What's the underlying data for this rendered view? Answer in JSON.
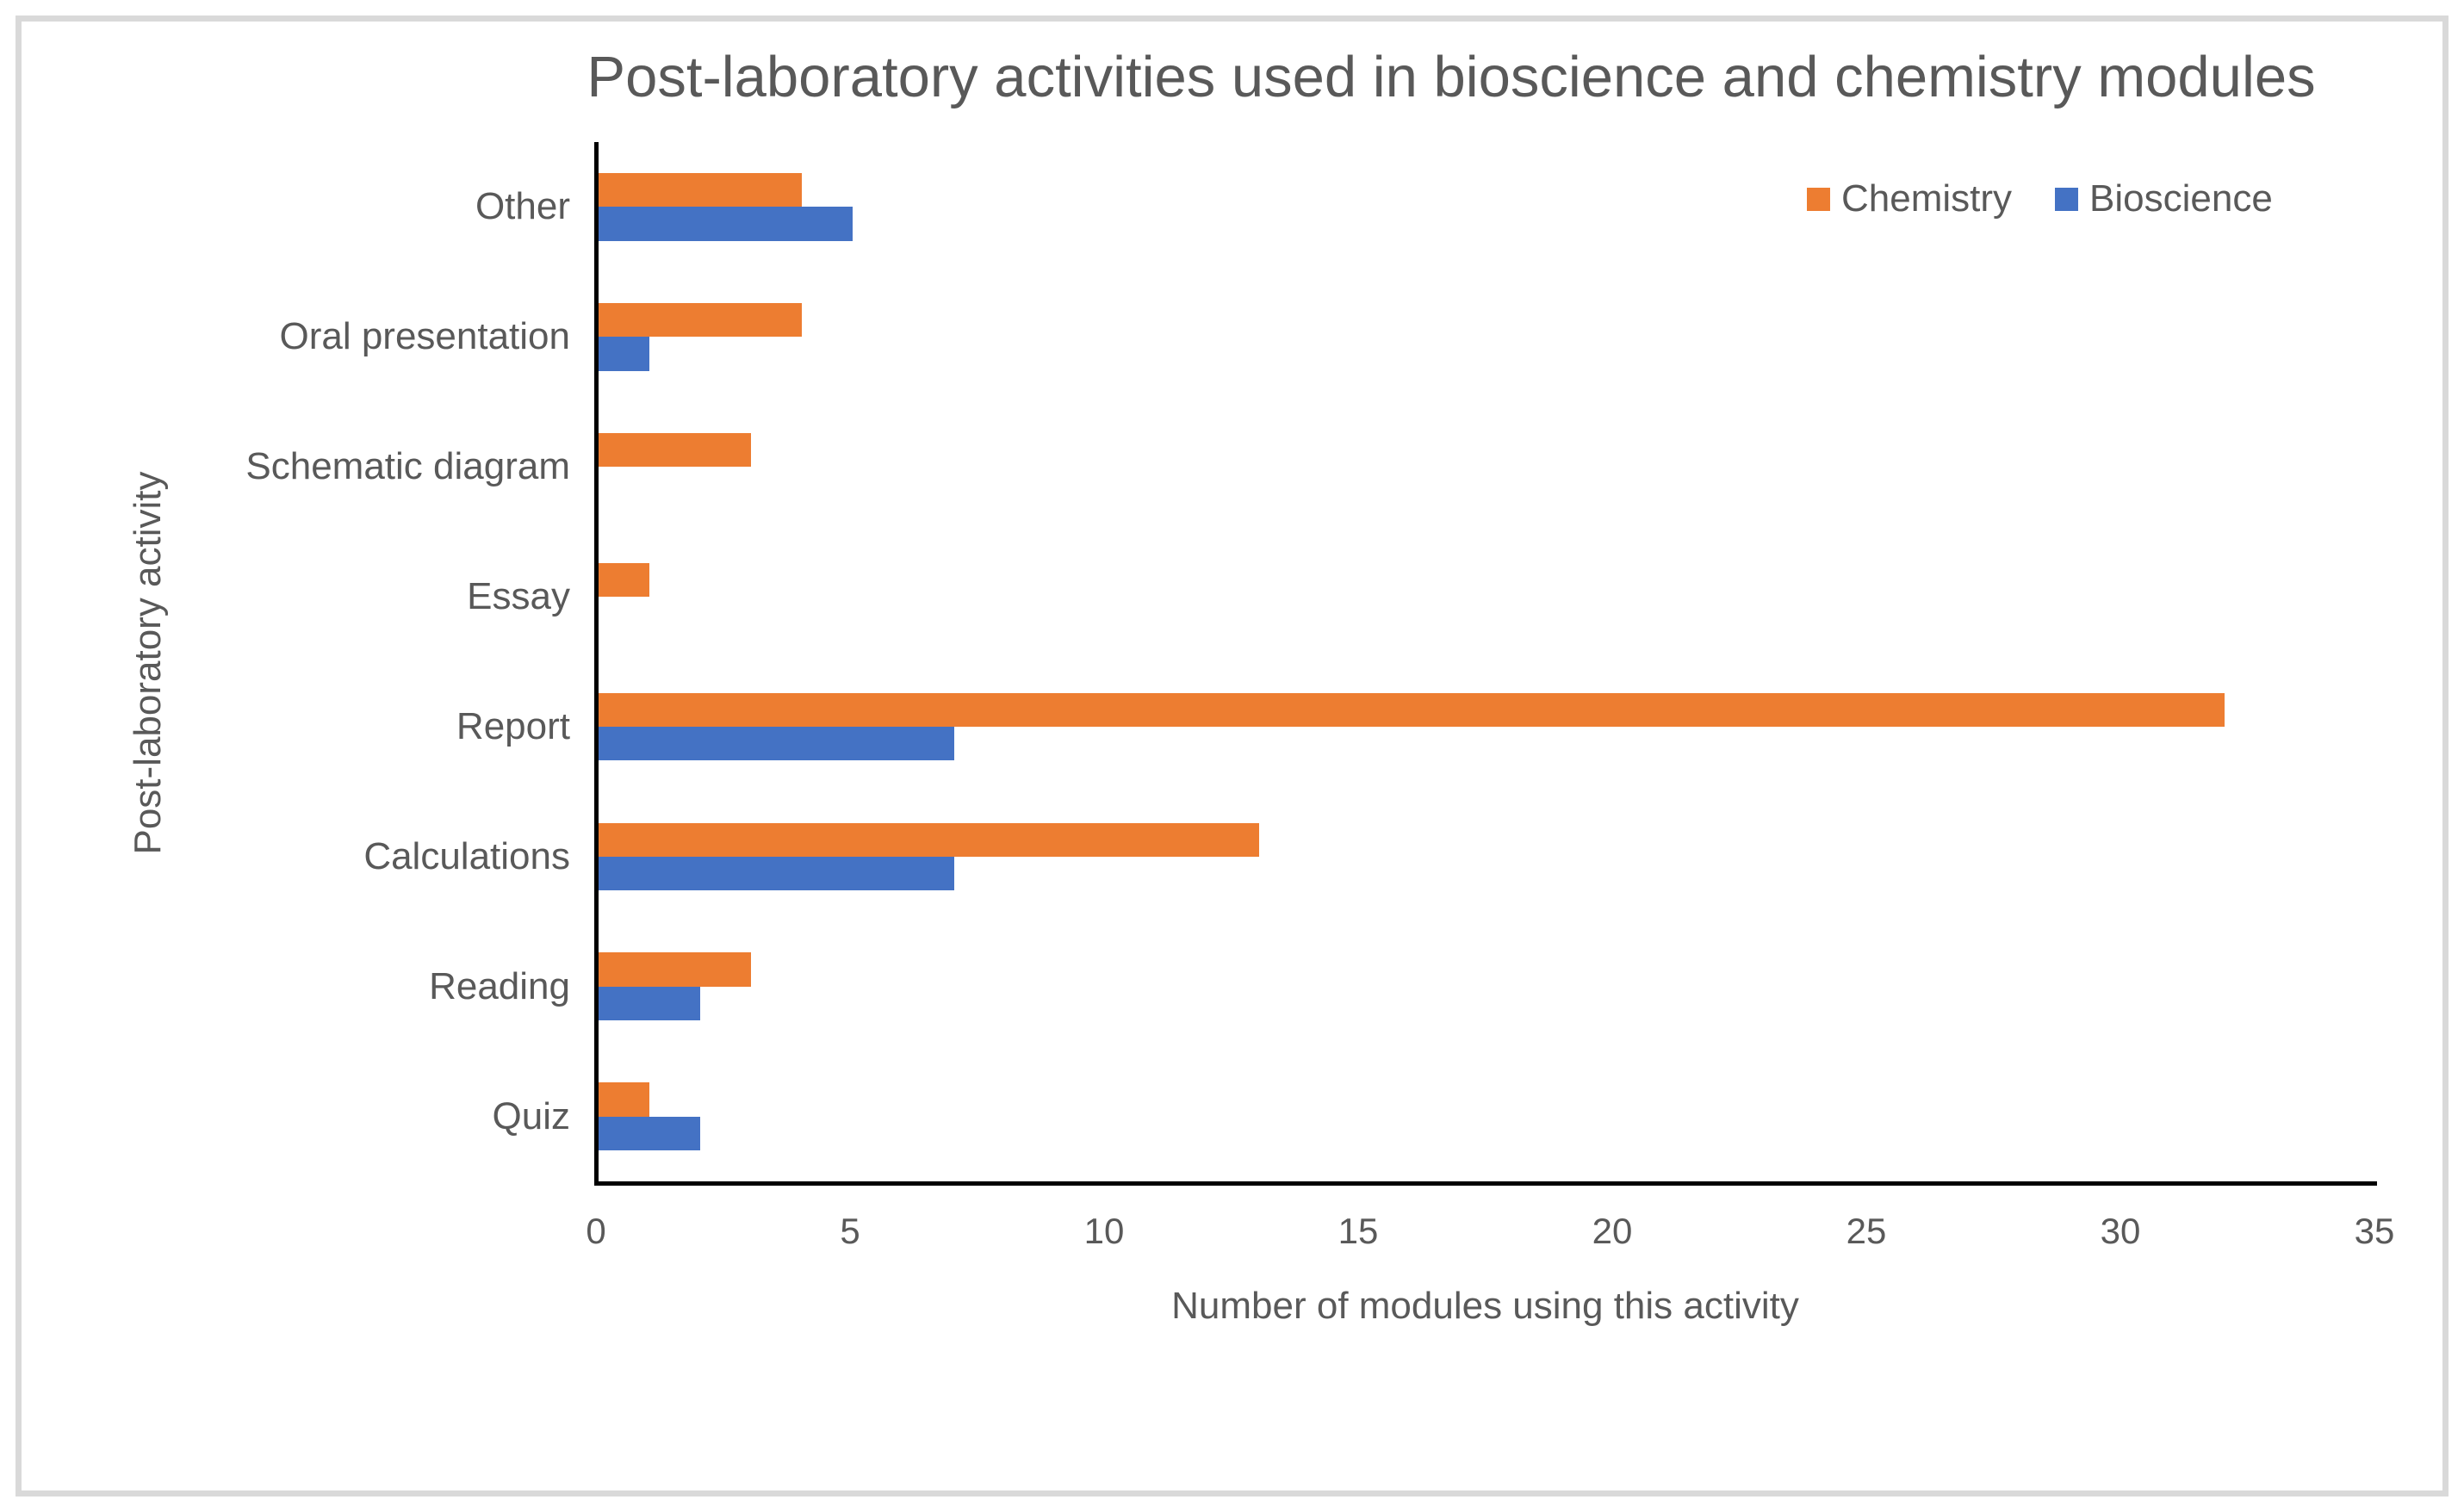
{
  "frame": {
    "border_color": "#D9D9D9"
  },
  "colors": {
    "chemistry": "#ED7D31",
    "bioscience": "#4472C4",
    "axis_line": "#000000",
    "text": "#595959"
  },
  "chart_data": {
    "type": "bar",
    "orientation": "horizontal",
    "title": "Post-laboratory activities used in bioscience and chemistry modules",
    "xlabel": "Number of modules using this activity",
    "ylabel": "Post-laboratory activity",
    "categories": [
      "Other",
      "Oral presentation",
      "Schematic diagram",
      "Essay",
      "Report",
      "Calculations",
      "Reading",
      "Quiz"
    ],
    "series": [
      {
        "name": "Chemistry",
        "color": "#ED7D31",
        "values": [
          4,
          4,
          3,
          1,
          32,
          13,
          3,
          1
        ]
      },
      {
        "name": "Bioscience",
        "color": "#4472C4",
        "values": [
          5,
          1,
          0,
          0,
          7,
          7,
          2,
          2
        ]
      }
    ],
    "xlim": [
      0,
      35
    ],
    "xticks": [
      0,
      5,
      10,
      15,
      20,
      25,
      30,
      35
    ],
    "grid": false,
    "legend_position": "top-right"
  }
}
